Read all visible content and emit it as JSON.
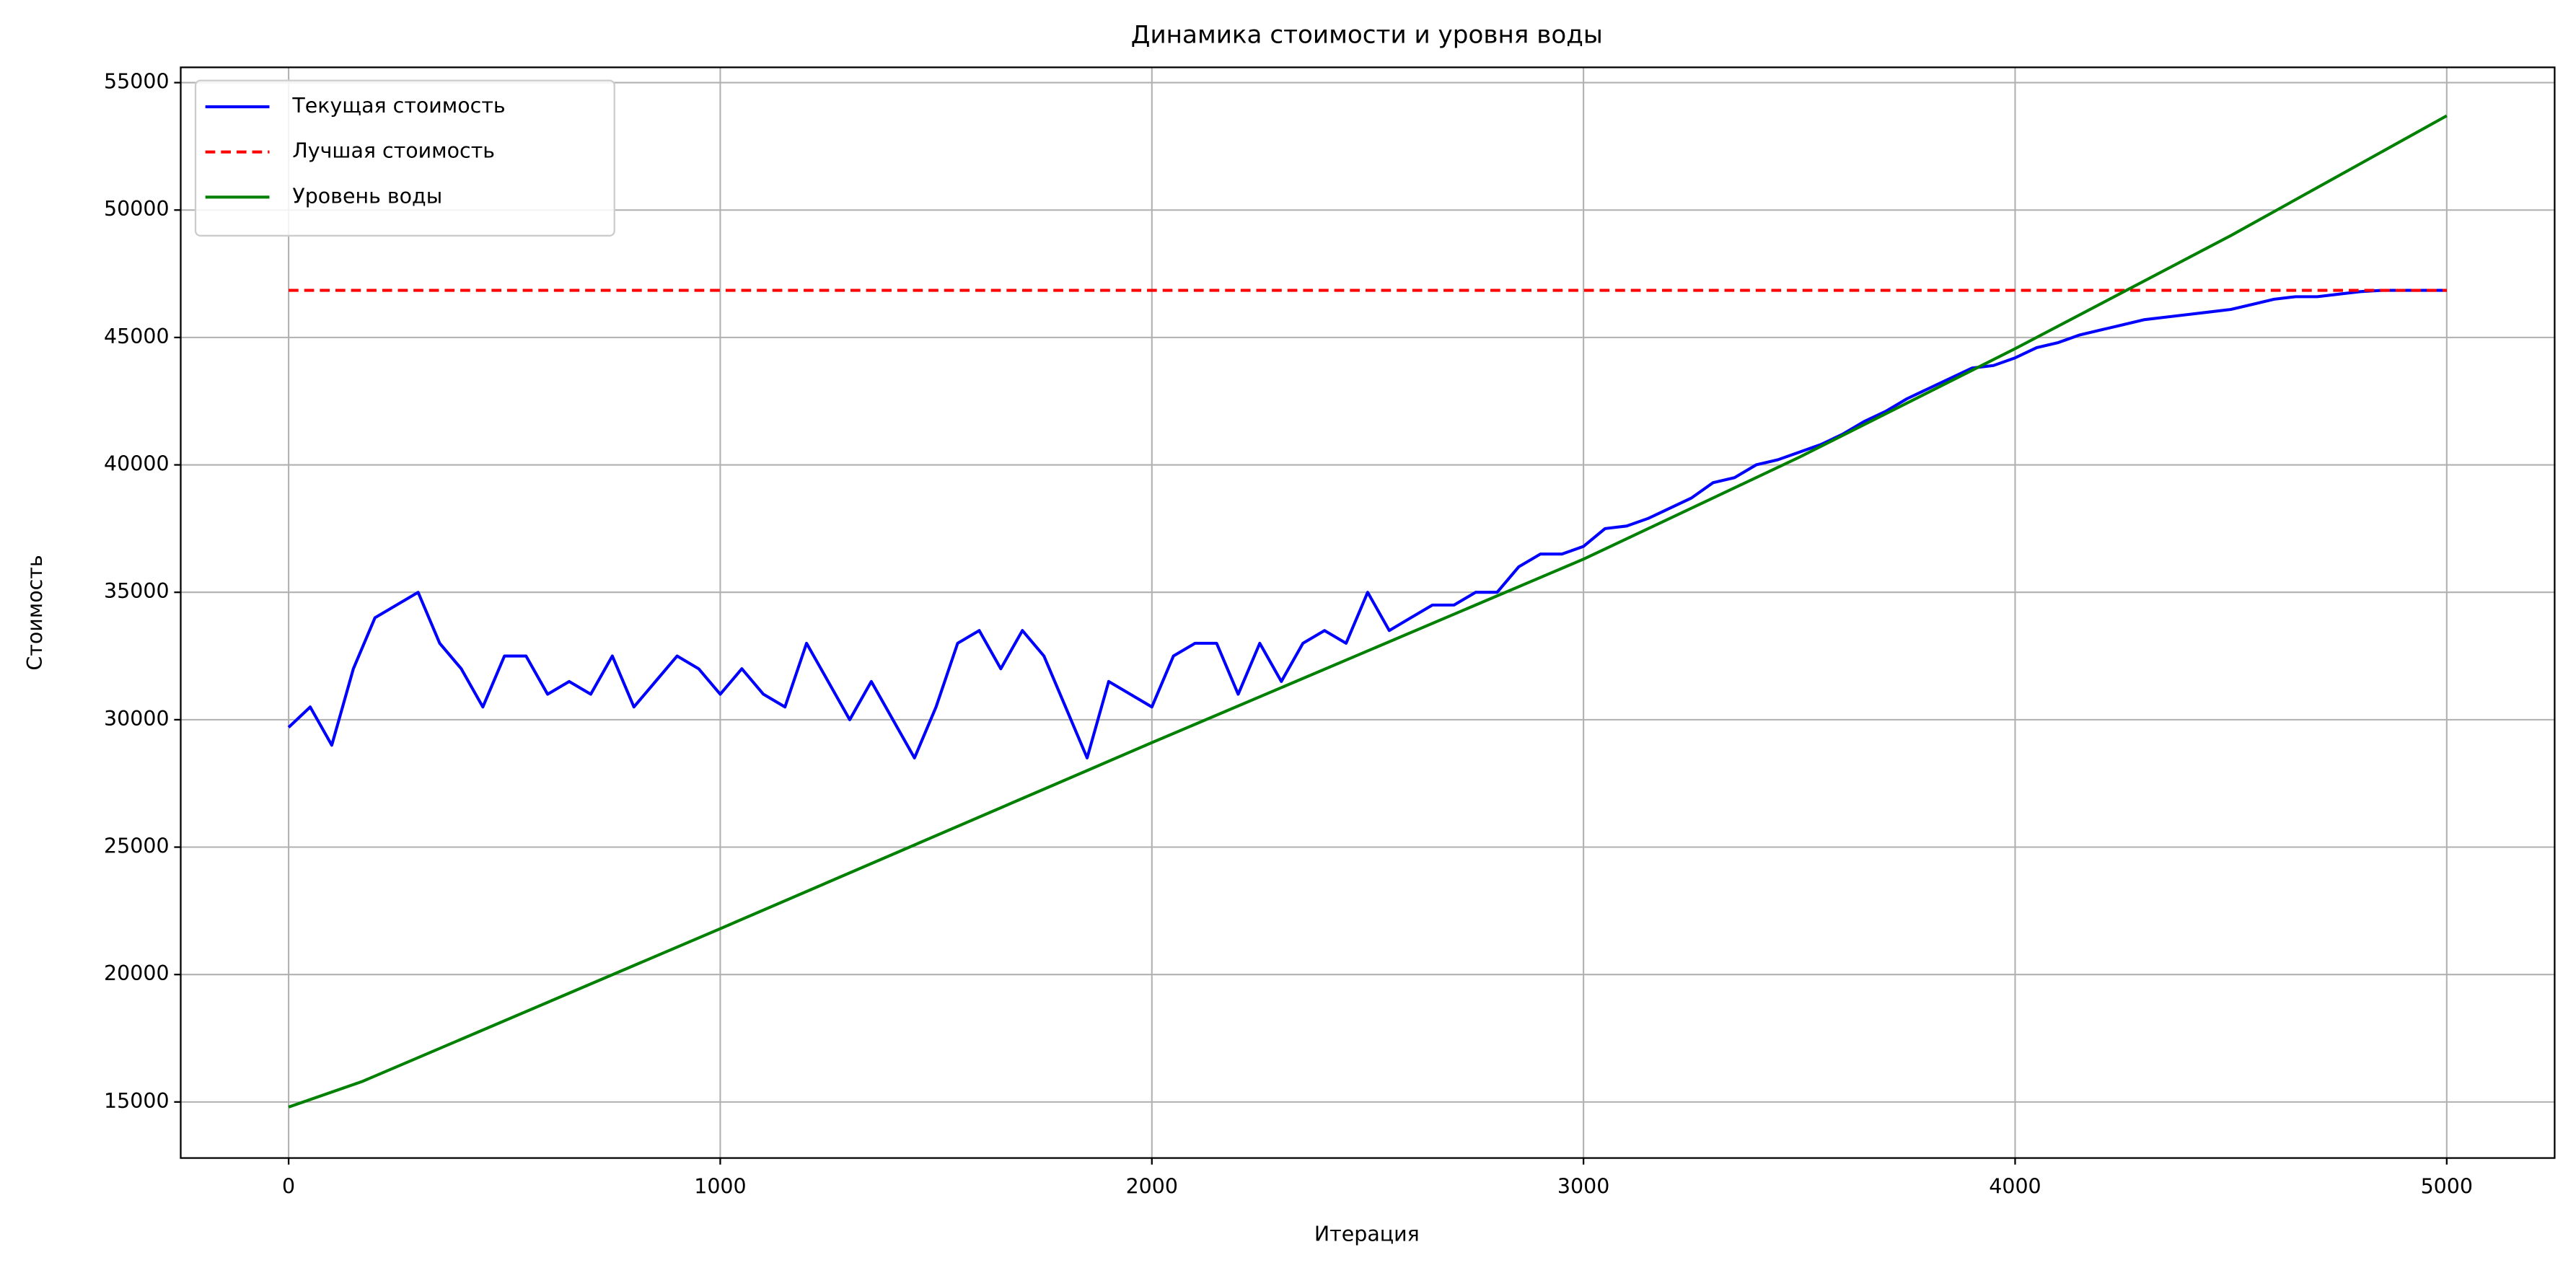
{
  "chart_data": {
    "type": "line",
    "title": "Динамика стоимости и уровня воды",
    "xlabel": "Итерация",
    "ylabel": "Стоимость",
    "xlim": [
      -250,
      5250
    ],
    "ylim": [
      12800,
      55600
    ],
    "xticks": [
      0,
      1000,
      2000,
      3000,
      4000,
      5000
    ],
    "yticks": [
      15000,
      20000,
      25000,
      30000,
      35000,
      40000,
      45000,
      50000,
      55000
    ],
    "grid": true,
    "legend": "upper left",
    "series": [
      {
        "name": "Текущая стоимость",
        "color": "#0000ff",
        "dash": "solid",
        "x": [
          0,
          50,
          100,
          150,
          200,
          250,
          300,
          350,
          400,
          450,
          500,
          550,
          600,
          650,
          700,
          750,
          800,
          850,
          900,
          950,
          1000,
          1050,
          1100,
          1150,
          1200,
          1250,
          1300,
          1350,
          1400,
          1450,
          1500,
          1550,
          1600,
          1650,
          1700,
          1750,
          1800,
          1850,
          1900,
          1950,
          2000,
          2050,
          2100,
          2150,
          2200,
          2250,
          2300,
          2350,
          2400,
          2450,
          2500,
          2550,
          2600,
          2650,
          2700,
          2750,
          2800,
          2850,
          2900,
          2950,
          3000,
          3050,
          3100,
          3150,
          3200,
          3250,
          3300,
          3350,
          3400,
          3450,
          3500,
          3550,
          3600,
          3650,
          3700,
          3750,
          3800,
          3850,
          3900,
          3950,
          4000,
          4050,
          4100,
          4150,
          4200,
          4250,
          4300,
          4350,
          4400,
          4450,
          4500,
          4550,
          4600,
          4650,
          4700,
          4750,
          4800,
          4850,
          4900,
          4950,
          5000
        ],
        "values": [
          29700,
          30500,
          29000,
          32000,
          34000,
          34500,
          35000,
          33000,
          32000,
          30500,
          32500,
          32500,
          31000,
          31500,
          31000,
          32500,
          30500,
          31500,
          32500,
          32000,
          31000,
          32000,
          31000,
          30500,
          33000,
          31500,
          30000,
          31500,
          30000,
          28500,
          30500,
          33000,
          33500,
          32000,
          33500,
          32500,
          30500,
          28500,
          31500,
          31000,
          30500,
          32500,
          33000,
          33000,
          31000,
          33000,
          31500,
          33000,
          33500,
          33000,
          35000,
          33500,
          34000,
          34500,
          34500,
          35000,
          35000,
          36000,
          36500,
          36500,
          36800,
          37500,
          37600,
          37900,
          38300,
          38700,
          39300,
          39500,
          40000,
          40200,
          40500,
          40800,
          41200,
          41700,
          42100,
          42600,
          43000,
          43400,
          43800,
          43900,
          44200,
          44600,
          44800,
          45100,
          45300,
          45500,
          45700,
          45800,
          45900,
          46000,
          46100,
          46300,
          46500,
          46600,
          46600,
          46700,
          46800,
          46850,
          46850,
          46850,
          46850
        ]
      },
      {
        "name": "Лучшая стоимость",
        "color": "#ff0000",
        "dash": "dashed",
        "x": [
          0,
          5000
        ],
        "values": [
          46850,
          46850
        ]
      },
      {
        "name": "Уровень воды",
        "color": "#008000",
        "dash": "solid",
        "x": [
          0,
          170,
          1000,
          2000,
          3000,
          3500,
          4000,
          4500,
          5000
        ],
        "values": [
          14800,
          15800,
          21800,
          29100,
          36300,
          40300,
          44560,
          49000,
          53700
        ]
      }
    ]
  }
}
